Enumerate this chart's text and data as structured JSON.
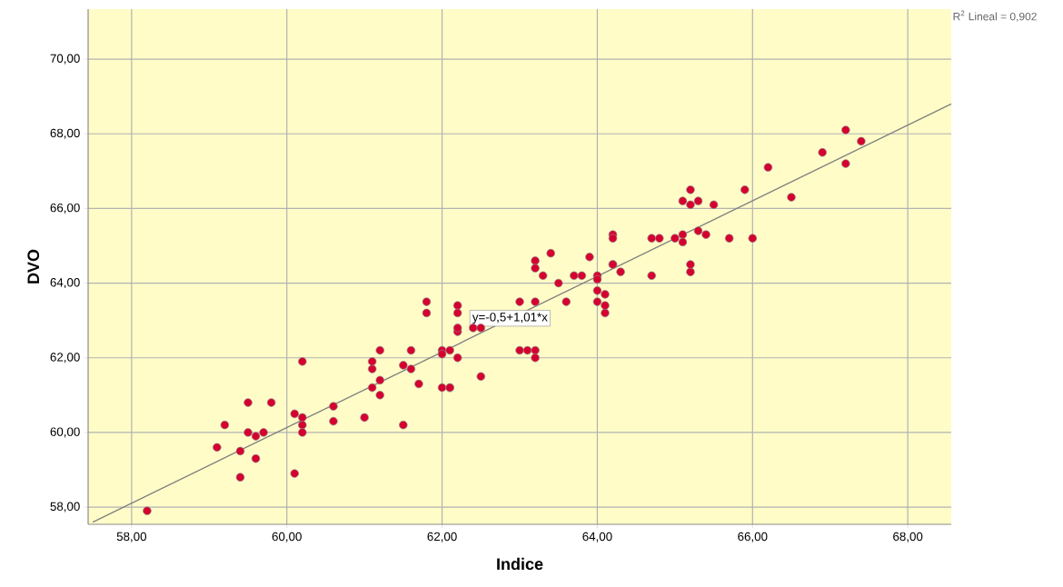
{
  "chart_data": {
    "type": "scatter",
    "xlabel": "Indice",
    "ylabel": "DVO",
    "xlim": [
      57.44,
      68.56
    ],
    "ylim": [
      57.54,
      71.34
    ],
    "xticks": [
      {
        "value": 58,
        "label": "58,00"
      },
      {
        "value": 60,
        "label": "60,00"
      },
      {
        "value": 62,
        "label": "62,00"
      },
      {
        "value": 64,
        "label": "64,00"
      },
      {
        "value": 66,
        "label": "66,00"
      },
      {
        "value": 68,
        "label": "68,00"
      }
    ],
    "yticks": [
      {
        "value": 58,
        "label": "58,00"
      },
      {
        "value": 60,
        "label": "60,00"
      },
      {
        "value": 62,
        "label": "62,00"
      },
      {
        "value": 64,
        "label": "64,00"
      },
      {
        "value": 66,
        "label": "66,00"
      },
      {
        "value": 68,
        "label": "68,00"
      },
      {
        "value": 70,
        "label": "70,00"
      }
    ],
    "grid": true,
    "series": [
      {
        "marker": "circle",
        "color": "#d6002f",
        "x": [
          58.2,
          59.1,
          59.2,
          59.4,
          59.4,
          59.5,
          59.5,
          59.6,
          59.6,
          59.7,
          59.8,
          60.1,
          60.1,
          60.2,
          60.2,
          60.2,
          60.2,
          60.6,
          60.6,
          61.0,
          61.1,
          61.1,
          61.1,
          61.2,
          61.2,
          61.2,
          61.5,
          61.5,
          61.6,
          61.6,
          61.7,
          61.8,
          61.8,
          62.0,
          62.0,
          62.0,
          62.1,
          62.1,
          62.1,
          62.2,
          62.2,
          62.2,
          62.2,
          62.2,
          62.5,
          62.4,
          62.5,
          63.0,
          63.0,
          63.1,
          63.2,
          63.2,
          63.2,
          63.2,
          63.2,
          63.3,
          63.4,
          63.5,
          63.6,
          63.7,
          63.8,
          63.9,
          64.0,
          64.0,
          64.0,
          64.0,
          64.1,
          64.1,
          64.1,
          64.2,
          64.2,
          64.2,
          64.2,
          64.3,
          64.7,
          64.8,
          64.7,
          65.0,
          65.1,
          65.1,
          65.1,
          65.2,
          65.2,
          65.2,
          65.2,
          65.3,
          65.3,
          65.4,
          65.5,
          65.7,
          65.9,
          66.0,
          66.2,
          66.5,
          66.9,
          67.2,
          67.2,
          67.4
        ],
        "values": [
          57.9,
          59.6,
          60.2,
          59.5,
          58.8,
          60.8,
          60.0,
          59.9,
          59.3,
          60.0,
          60.8,
          58.9,
          60.5,
          60.2,
          61.9,
          60.4,
          60.0,
          60.3,
          60.7,
          60.4,
          61.7,
          61.9,
          61.2,
          61.4,
          61.0,
          62.2,
          61.8,
          60.2,
          61.7,
          62.2,
          61.3,
          63.5,
          63.2,
          62.2,
          61.2,
          62.1,
          61.2,
          62.2,
          61.2,
          63.4,
          63.2,
          62.7,
          62.8,
          62.0,
          61.5,
          62.8,
          62.8,
          63.5,
          62.2,
          62.2,
          62.2,
          62.0,
          63.5,
          64.6,
          64.4,
          64.2,
          64.8,
          64.0,
          63.5,
          64.2,
          64.2,
          64.7,
          64.2,
          64.1,
          63.8,
          63.5,
          63.2,
          63.4,
          63.7,
          64.5,
          65.3,
          65.2,
          64.5,
          64.3,
          65.2,
          65.2,
          64.2,
          65.2,
          66.2,
          65.3,
          65.1,
          66.5,
          66.1,
          64.3,
          64.5,
          65.4,
          66.2,
          65.3,
          66.1,
          65.2,
          66.5,
          65.2,
          67.1,
          66.3,
          67.5,
          68.1,
          67.2,
          67.8
        ]
      },
      {
        "type": "line",
        "color": "#808080",
        "x": [
          57.5,
          68.56
        ],
        "values": [
          57.6,
          68.8
        ]
      }
    ],
    "annotations": [
      "y=-0,5+1,01*x",
      "R$^{2}$ Lineal = 0,902"
    ]
  }
}
